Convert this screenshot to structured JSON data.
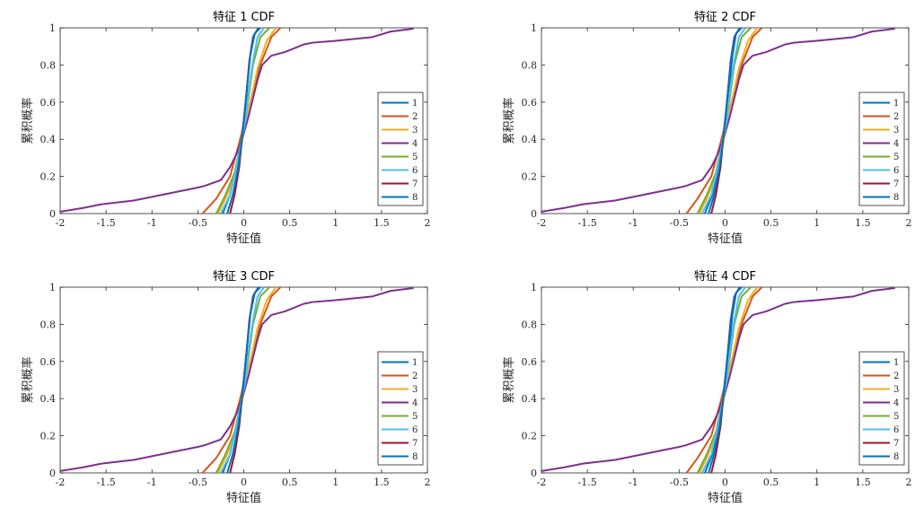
{
  "chart_data": [
    {
      "type": "line",
      "title": "特征 1 CDF",
      "xlabel": "特征值",
      "ylabel": "累积概率",
      "xlim": [
        -2,
        2
      ],
      "ylim": [
        0,
        1
      ],
      "xticks": [
        -2,
        -1.5,
        -1,
        -0.5,
        0,
        0.5,
        1,
        1.5,
        2
      ],
      "xtick_labels": [
        "-2",
        "-1.5",
        "-1",
        "-0.5",
        "0",
        "0.5",
        "1",
        "1.5",
        "2"
      ],
      "yticks": [
        0,
        0.2,
        0.4,
        0.6,
        0.8,
        1
      ],
      "ytick_labels": [
        "0",
        "0.2",
        "0.4",
        "0.6",
        "0.8",
        "1"
      ],
      "legend_position": "lower-right",
      "series": [
        {
          "name": "1",
          "color": "#0072BD",
          "x": [
            -0.23,
            -0.15,
            -0.08,
            -0.03,
            0,
            0.03,
            0.07,
            0.12,
            0.18
          ],
          "y": [
            0,
            0.1,
            0.25,
            0.4,
            0.5,
            0.65,
            0.85,
            0.97,
            1
          ]
        },
        {
          "name": "2",
          "color": "#D95319",
          "x": [
            -0.45,
            -0.3,
            -0.15,
            -0.05,
            0,
            0.08,
            0.18,
            0.3,
            0.4
          ],
          "y": [
            0,
            0.08,
            0.2,
            0.38,
            0.48,
            0.62,
            0.8,
            0.95,
            1
          ]
        },
        {
          "name": "3",
          "color": "#EDB120",
          "x": [
            -0.28,
            -0.2,
            -0.1,
            -0.02,
            0.02,
            0.08,
            0.15,
            0.25,
            0.35
          ],
          "y": [
            0,
            0.08,
            0.2,
            0.38,
            0.5,
            0.62,
            0.78,
            0.93,
            1
          ]
        },
        {
          "name": "4",
          "color": "#7E2F8E",
          "x": [
            -2,
            -1.75,
            -1.55,
            -1.2,
            -1,
            -0.7,
            -0.5,
            -0.42,
            -0.25,
            -0.15,
            -0.08,
            0,
            0.05,
            0.1,
            0.15,
            0.2,
            0.3,
            0.45,
            0.55,
            0.65,
            0.75,
            1,
            1.4,
            1.6,
            1.85
          ],
          "y": [
            0.01,
            0.03,
            0.05,
            0.07,
            0.09,
            0.12,
            0.14,
            0.15,
            0.18,
            0.25,
            0.32,
            0.43,
            0.52,
            0.62,
            0.72,
            0.8,
            0.85,
            0.87,
            0.89,
            0.91,
            0.92,
            0.93,
            0.95,
            0.98,
            0.995
          ]
        },
        {
          "name": "5",
          "color": "#77AC30",
          "x": [
            -0.3,
            -0.2,
            -0.1,
            -0.03,
            0,
            0.05,
            0.1,
            0.18,
            0.28
          ],
          "y": [
            0,
            0.1,
            0.22,
            0.38,
            0.5,
            0.62,
            0.8,
            0.95,
            1
          ]
        },
        {
          "name": "6",
          "color": "#4DBEEE",
          "x": [
            -0.25,
            -0.15,
            -0.08,
            -0.02,
            0.02,
            0.05,
            0.1,
            0.15,
            0.22
          ],
          "y": [
            0,
            0.1,
            0.25,
            0.4,
            0.5,
            0.65,
            0.82,
            0.95,
            1
          ]
        },
        {
          "name": "7",
          "color": "#A2142F",
          "x": [
            -0.15,
            -0.1,
            -0.05,
            -0.02,
            0,
            0.03,
            0.06,
            0.1,
            0.16
          ],
          "y": [
            0,
            0.1,
            0.25,
            0.4,
            0.5,
            0.65,
            0.82,
            0.95,
            1
          ]
        },
        {
          "name": "8",
          "color": "#0072BD",
          "x": [
            -0.18,
            -0.12,
            -0.06,
            -0.02,
            0,
            0.03,
            0.07,
            0.11,
            0.16
          ],
          "y": [
            0,
            0.1,
            0.25,
            0.4,
            0.5,
            0.65,
            0.85,
            0.96,
            1
          ]
        }
      ]
    },
    {
      "type": "line",
      "title": "特征 2 CDF",
      "xlabel": "特征值",
      "ylabel": "累积概率",
      "xlim": [
        -2,
        2
      ],
      "ylim": [
        0,
        1
      ],
      "xticks": [
        -2,
        -1.5,
        -1,
        -0.5,
        0,
        0.5,
        1,
        1.5,
        2
      ],
      "xtick_labels": [
        "-2",
        "-1.5",
        "-1",
        "-0.5",
        "0",
        "0.5",
        "1",
        "1.5",
        "2"
      ],
      "yticks": [
        0,
        0.2,
        0.4,
        0.6,
        0.8,
        1
      ],
      "ytick_labels": [
        "0",
        "0.2",
        "0.4",
        "0.6",
        "0.8",
        "1"
      ],
      "legend_position": "lower-right",
      "series": [
        {
          "name": "1",
          "color": "#0072BD",
          "x": [
            -0.22,
            -0.14,
            -0.07,
            -0.02,
            0,
            0.04,
            0.08,
            0.12,
            0.18
          ],
          "y": [
            0,
            0.1,
            0.25,
            0.4,
            0.5,
            0.65,
            0.85,
            0.97,
            1
          ]
        },
        {
          "name": "2",
          "color": "#D95319",
          "x": [
            -0.42,
            -0.3,
            -0.15,
            -0.05,
            0,
            0.08,
            0.18,
            0.3,
            0.4
          ],
          "y": [
            0,
            0.08,
            0.2,
            0.38,
            0.48,
            0.62,
            0.8,
            0.95,
            1
          ]
        },
        {
          "name": "3",
          "color": "#EDB120",
          "x": [
            -0.28,
            -0.2,
            -0.1,
            -0.02,
            0.02,
            0.08,
            0.15,
            0.25,
            0.35
          ],
          "y": [
            0,
            0.08,
            0.2,
            0.38,
            0.5,
            0.62,
            0.78,
            0.93,
            1
          ]
        },
        {
          "name": "4",
          "color": "#7E2F8E",
          "x": [
            -2,
            -1.75,
            -1.55,
            -1.2,
            -1,
            -0.7,
            -0.5,
            -0.42,
            -0.25,
            -0.15,
            -0.08,
            0,
            0.05,
            0.1,
            0.15,
            0.2,
            0.3,
            0.45,
            0.55,
            0.65,
            0.75,
            1,
            1.4,
            1.6,
            1.85
          ],
          "y": [
            0.01,
            0.03,
            0.05,
            0.07,
            0.09,
            0.12,
            0.14,
            0.15,
            0.18,
            0.25,
            0.32,
            0.43,
            0.52,
            0.62,
            0.72,
            0.8,
            0.85,
            0.87,
            0.89,
            0.91,
            0.92,
            0.93,
            0.95,
            0.98,
            0.995
          ]
        },
        {
          "name": "5",
          "color": "#77AC30",
          "x": [
            -0.3,
            -0.2,
            -0.1,
            -0.03,
            0,
            0.05,
            0.1,
            0.18,
            0.28
          ],
          "y": [
            0,
            0.1,
            0.22,
            0.38,
            0.5,
            0.62,
            0.8,
            0.95,
            1
          ]
        },
        {
          "name": "6",
          "color": "#4DBEEE",
          "x": [
            -0.25,
            -0.15,
            -0.08,
            -0.02,
            0.02,
            0.05,
            0.1,
            0.15,
            0.22
          ],
          "y": [
            0,
            0.1,
            0.25,
            0.4,
            0.5,
            0.65,
            0.82,
            0.95,
            1
          ]
        },
        {
          "name": "7",
          "color": "#A2142F",
          "x": [
            -0.15,
            -0.1,
            -0.05,
            -0.02,
            0,
            0.03,
            0.06,
            0.1,
            0.16
          ],
          "y": [
            0,
            0.1,
            0.25,
            0.4,
            0.5,
            0.65,
            0.82,
            0.95,
            1
          ]
        },
        {
          "name": "8",
          "color": "#0072BD",
          "x": [
            -0.18,
            -0.12,
            -0.06,
            -0.02,
            0,
            0.03,
            0.07,
            0.11,
            0.16
          ],
          "y": [
            0,
            0.1,
            0.25,
            0.4,
            0.5,
            0.65,
            0.85,
            0.96,
            1
          ]
        }
      ]
    },
    {
      "type": "line",
      "title": "特征 3 CDF",
      "xlabel": "特征值",
      "ylabel": "累积概率",
      "xlim": [
        -2,
        2
      ],
      "ylim": [
        0,
        1
      ],
      "xticks": [
        -2,
        -1.5,
        -1,
        -0.5,
        0,
        0.5,
        1,
        1.5,
        2
      ],
      "xtick_labels": [
        "-2",
        "-1.5",
        "-1",
        "-0.5",
        "0",
        "0.5",
        "1",
        "1.5",
        "2"
      ],
      "yticks": [
        0,
        0.2,
        0.4,
        0.6,
        0.8,
        1
      ],
      "ytick_labels": [
        "0",
        "0.2",
        "0.4",
        "0.6",
        "0.8",
        "1"
      ],
      "legend_position": "lower-right",
      "series": [
        {
          "name": "1",
          "color": "#0072BD",
          "x": [
            -0.23,
            -0.15,
            -0.08,
            -0.03,
            0,
            0.03,
            0.07,
            0.12,
            0.18
          ],
          "y": [
            0,
            0.1,
            0.25,
            0.4,
            0.5,
            0.65,
            0.85,
            0.97,
            1
          ]
        },
        {
          "name": "2",
          "color": "#D95319",
          "x": [
            -0.45,
            -0.3,
            -0.15,
            -0.05,
            0,
            0.08,
            0.18,
            0.3,
            0.4
          ],
          "y": [
            0,
            0.08,
            0.2,
            0.38,
            0.48,
            0.62,
            0.8,
            0.95,
            1
          ]
        },
        {
          "name": "3",
          "color": "#EDB120",
          "x": [
            -0.28,
            -0.2,
            -0.1,
            -0.02,
            0.02,
            0.08,
            0.15,
            0.25,
            0.35
          ],
          "y": [
            0,
            0.08,
            0.2,
            0.38,
            0.5,
            0.62,
            0.78,
            0.93,
            1
          ]
        },
        {
          "name": "4",
          "color": "#7E2F8E",
          "x": [
            -2,
            -1.75,
            -1.55,
            -1.2,
            -1,
            -0.7,
            -0.5,
            -0.42,
            -0.25,
            -0.15,
            -0.08,
            0,
            0.05,
            0.1,
            0.15,
            0.2,
            0.3,
            0.45,
            0.55,
            0.65,
            0.75,
            1,
            1.4,
            1.6,
            1.85
          ],
          "y": [
            0.01,
            0.03,
            0.05,
            0.07,
            0.09,
            0.12,
            0.14,
            0.15,
            0.18,
            0.25,
            0.32,
            0.43,
            0.52,
            0.62,
            0.72,
            0.8,
            0.85,
            0.87,
            0.89,
            0.91,
            0.92,
            0.93,
            0.95,
            0.98,
            0.995
          ]
        },
        {
          "name": "5",
          "color": "#77AC30",
          "x": [
            -0.3,
            -0.2,
            -0.1,
            -0.03,
            0,
            0.05,
            0.1,
            0.18,
            0.28
          ],
          "y": [
            0,
            0.1,
            0.22,
            0.38,
            0.5,
            0.62,
            0.8,
            0.95,
            1
          ]
        },
        {
          "name": "6",
          "color": "#4DBEEE",
          "x": [
            -0.25,
            -0.15,
            -0.08,
            -0.02,
            0.02,
            0.05,
            0.1,
            0.15,
            0.22
          ],
          "y": [
            0,
            0.1,
            0.25,
            0.4,
            0.5,
            0.65,
            0.82,
            0.95,
            1
          ]
        },
        {
          "name": "7",
          "color": "#A2142F",
          "x": [
            -0.15,
            -0.1,
            -0.05,
            -0.02,
            0,
            0.03,
            0.06,
            0.1,
            0.16
          ],
          "y": [
            0,
            0.1,
            0.25,
            0.4,
            0.5,
            0.65,
            0.82,
            0.95,
            1
          ]
        },
        {
          "name": "8",
          "color": "#0072BD",
          "x": [
            -0.18,
            -0.12,
            -0.06,
            -0.02,
            0,
            0.03,
            0.07,
            0.11,
            0.16
          ],
          "y": [
            0,
            0.1,
            0.25,
            0.4,
            0.5,
            0.65,
            0.85,
            0.96,
            1
          ]
        }
      ]
    },
    {
      "type": "line",
      "title": "特征 4 CDF",
      "xlabel": "特征值",
      "ylabel": "累积概率",
      "xlim": [
        -2,
        2
      ],
      "ylim": [
        0,
        1
      ],
      "xticks": [
        -2,
        -1.5,
        -1,
        -0.5,
        0,
        0.5,
        1,
        1.5,
        2
      ],
      "xtick_labels": [
        "-2",
        "-1.5",
        "-1",
        "-0.5",
        "0",
        "0.5",
        "1",
        "1.5",
        "2"
      ],
      "yticks": [
        0,
        0.2,
        0.4,
        0.6,
        0.8,
        1
      ],
      "ytick_labels": [
        "0",
        "0.2",
        "0.4",
        "0.6",
        "0.8",
        "1"
      ],
      "legend_position": "lower-right",
      "series": [
        {
          "name": "1",
          "color": "#0072BD",
          "x": [
            -0.22,
            -0.14,
            -0.07,
            -0.02,
            0,
            0.04,
            0.08,
            0.12,
            0.18
          ],
          "y": [
            0,
            0.1,
            0.25,
            0.4,
            0.5,
            0.65,
            0.85,
            0.97,
            1
          ]
        },
        {
          "name": "2",
          "color": "#D95319",
          "x": [
            -0.42,
            -0.3,
            -0.15,
            -0.05,
            0,
            0.08,
            0.18,
            0.3,
            0.4
          ],
          "y": [
            0,
            0.08,
            0.2,
            0.38,
            0.48,
            0.62,
            0.8,
            0.95,
            1
          ]
        },
        {
          "name": "3",
          "color": "#EDB120",
          "x": [
            -0.28,
            -0.2,
            -0.1,
            -0.02,
            0.02,
            0.08,
            0.15,
            0.25,
            0.35
          ],
          "y": [
            0,
            0.08,
            0.2,
            0.38,
            0.5,
            0.62,
            0.78,
            0.93,
            1
          ]
        },
        {
          "name": "4",
          "color": "#7E2F8E",
          "x": [
            -2,
            -1.75,
            -1.55,
            -1.2,
            -1,
            -0.7,
            -0.5,
            -0.42,
            -0.25,
            -0.15,
            -0.08,
            0,
            0.05,
            0.1,
            0.15,
            0.2,
            0.3,
            0.45,
            0.55,
            0.65,
            0.75,
            1,
            1.4,
            1.6,
            1.85
          ],
          "y": [
            0.01,
            0.03,
            0.05,
            0.07,
            0.09,
            0.12,
            0.14,
            0.15,
            0.18,
            0.25,
            0.32,
            0.43,
            0.52,
            0.62,
            0.72,
            0.8,
            0.85,
            0.87,
            0.89,
            0.91,
            0.92,
            0.93,
            0.95,
            0.98,
            0.995
          ]
        },
        {
          "name": "5",
          "color": "#77AC30",
          "x": [
            -0.3,
            -0.2,
            -0.1,
            -0.03,
            0,
            0.05,
            0.1,
            0.18,
            0.28
          ],
          "y": [
            0,
            0.1,
            0.22,
            0.38,
            0.5,
            0.62,
            0.8,
            0.95,
            1
          ]
        },
        {
          "name": "6",
          "color": "#4DBEEE",
          "x": [
            -0.25,
            -0.15,
            -0.08,
            -0.02,
            0.02,
            0.05,
            0.1,
            0.15,
            0.22
          ],
          "y": [
            0,
            0.1,
            0.25,
            0.4,
            0.5,
            0.65,
            0.82,
            0.95,
            1
          ]
        },
        {
          "name": "7",
          "color": "#A2142F",
          "x": [
            -0.15,
            -0.1,
            -0.05,
            -0.02,
            0,
            0.03,
            0.06,
            0.1,
            0.16
          ],
          "y": [
            0,
            0.1,
            0.25,
            0.4,
            0.5,
            0.65,
            0.82,
            0.95,
            1
          ]
        },
        {
          "name": "8",
          "color": "#0072BD",
          "x": [
            -0.18,
            -0.12,
            -0.06,
            -0.02,
            0,
            0.03,
            0.07,
            0.11,
            0.16
          ],
          "y": [
            0,
            0.1,
            0.25,
            0.4,
            0.5,
            0.65,
            0.85,
            0.96,
            1
          ]
        }
      ]
    }
  ]
}
